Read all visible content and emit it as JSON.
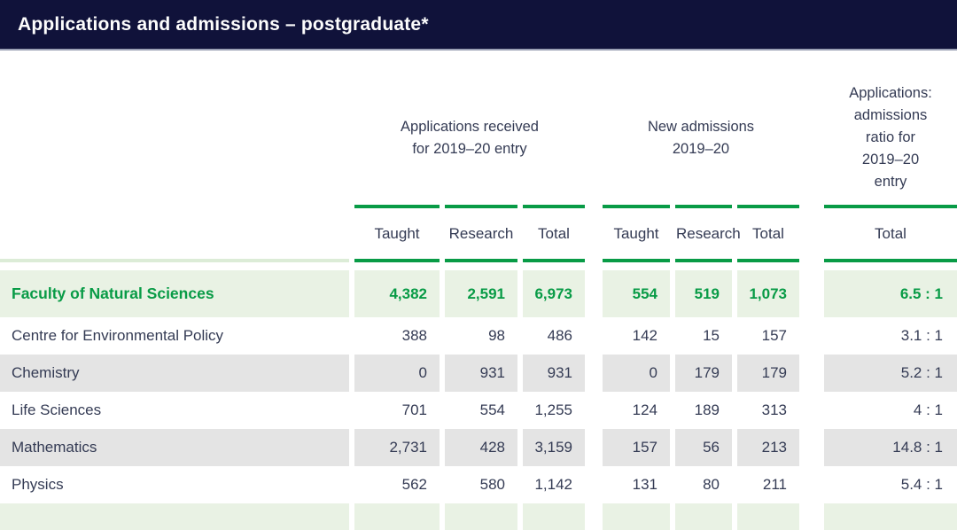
{
  "title": "Applications and admissions – postgraduate*",
  "colors": {
    "header_bar": "#10123a",
    "accent_green": "#089b46",
    "highlight_row_bg": "#e9f2e4",
    "stripe_gray": "#e4e4e4",
    "text": "#343b54"
  },
  "table": {
    "groups": [
      {
        "name": "applications-received",
        "lines": [
          "Applications received",
          "for 2019–20 entry"
        ]
      },
      {
        "name": "new-admissions",
        "lines": [
          "New admissions",
          "2019–20"
        ]
      },
      {
        "name": "applications-admissions-ratio",
        "lines": [
          "Applications:",
          "admissions",
          "ratio for",
          "2019–20",
          "entry"
        ]
      }
    ],
    "subheaders": {
      "app_taught": "Taught",
      "app_research": "Research",
      "app_total": "Total",
      "adm_taught": "Taught",
      "adm_research": "Research",
      "adm_total": "Total",
      "ratio_total": "Total"
    },
    "rows": [
      {
        "label": "Faculty of Natural Sciences",
        "highlight": true,
        "values": [
          "4,382",
          "2,591",
          "6,973",
          "554",
          "519",
          "1,073",
          "6.5 : 1"
        ]
      },
      {
        "label": "Centre for Environmental Policy",
        "highlight": false,
        "values": [
          "388",
          "98",
          "486",
          "142",
          "15",
          "157",
          "3.1 : 1"
        ]
      },
      {
        "label": "Chemistry",
        "highlight": false,
        "values": [
          "0",
          "931",
          "931",
          "0",
          "179",
          "179",
          "5.2 : 1"
        ]
      },
      {
        "label": "Life Sciences",
        "highlight": false,
        "values": [
          "701",
          "554",
          "1,255",
          "124",
          "189",
          "313",
          "4 : 1"
        ]
      },
      {
        "label": "Mathematics",
        "highlight": false,
        "values": [
          "2,731",
          "428",
          "3,159",
          "157",
          "56",
          "213",
          "14.8 : 1"
        ]
      },
      {
        "label": "Physics",
        "highlight": false,
        "values": [
          "562",
          "580",
          "1,142",
          "131",
          "80",
          "211",
          "5.4 : 1"
        ]
      }
    ]
  }
}
